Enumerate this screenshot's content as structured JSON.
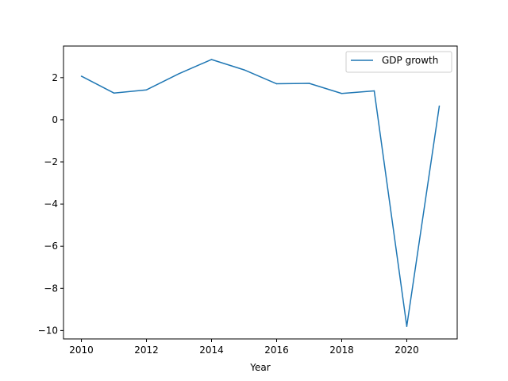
{
  "chart_data": {
    "type": "line",
    "title": "",
    "xlabel": "Year",
    "ylabel": "",
    "xlim": [
      2009.45,
      2021.55
    ],
    "ylim": [
      -10.4,
      3.5
    ],
    "xticks": [
      2010,
      2012,
      2014,
      2016,
      2018,
      2020
    ],
    "yticks": [
      2,
      0,
      -2,
      -4,
      -6,
      -8,
      -10
    ],
    "ytick_labels": [
      "2",
      "0",
      "−2",
      "−4",
      "−6",
      "−8",
      "−10"
    ],
    "grid": false,
    "legend_position": "top-right",
    "x": [
      2010,
      2011,
      2012,
      2013,
      2014,
      2015,
      2016,
      2017,
      2018,
      2019,
      2020,
      2021
    ],
    "series": [
      {
        "name": "GDP growth",
        "color": "#1f77b4",
        "values": [
          2.07,
          1.27,
          1.42,
          2.19,
          2.86,
          2.37,
          1.71,
          1.73,
          1.25,
          1.37,
          -9.8,
          0.65
        ]
      }
    ]
  }
}
